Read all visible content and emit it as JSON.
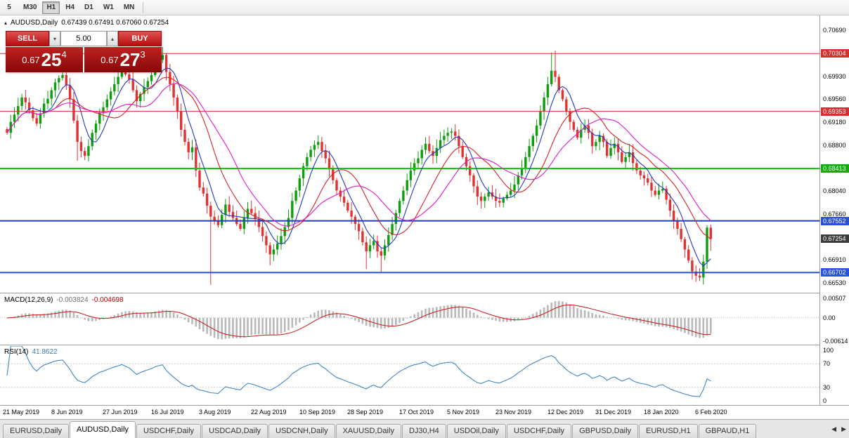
{
  "icons": {
    "collapse": "▴",
    "spin_up": "▴",
    "spin_down": "▾",
    "tab_scroll_left": "◀",
    "tab_scroll_right": "▶"
  },
  "toolbar": {
    "timeframes": [
      {
        "label": "5",
        "active": false
      },
      {
        "label": "M30",
        "active": false
      },
      {
        "label": "H1",
        "active": true
      },
      {
        "label": "H4",
        "active": false
      },
      {
        "label": "D1",
        "active": false
      },
      {
        "label": "W1",
        "active": false
      },
      {
        "label": "MN",
        "active": false
      }
    ]
  },
  "chart_header": {
    "symbol": "AUDUSD,Daily",
    "ohlc": "0.67439 0.67491 0.67060 0.67254"
  },
  "trade_panel": {
    "sell_label": "SELL",
    "buy_label": "BUY",
    "lot_size": "5.00",
    "sell_price": {
      "big": "0.67",
      "pips": "25",
      "point": "4"
    },
    "buy_price": {
      "big": "0.67",
      "pips": "27",
      "point": "3"
    }
  },
  "price_axis": {
    "ticks": [
      "0.70690",
      "0.69930",
      "0.69560",
      "0.69180",
      "0.68800",
      "0.68040",
      "0.67660",
      "0.66910",
      "0.66530"
    ],
    "line_labels": [
      {
        "text": "0.70304",
        "color": "#d53030"
      },
      {
        "text": "0.69353",
        "color": "#d53030"
      },
      {
        "text": "0.68413",
        "color": "#0ab00a"
      },
      {
        "text": "0.67552",
        "color": "#2a50d8"
      },
      {
        "text": "0.66702",
        "color": "#2a52e0"
      }
    ],
    "current_price": {
      "text": "0.67254",
      "color": "#3c3c3c"
    }
  },
  "chart_data": {
    "type": "candlestick",
    "symbol": "AUDUSD",
    "period": "Daily",
    "title": "AUDUSD,Daily",
    "y_range": [
      0.6637,
      0.7093
    ],
    "x_labels": [
      "21 May 2019",
      "8 Jun 2019",
      "27 Jun 2019",
      "16 Jul 2019",
      "3 Aug 2019",
      "22 Aug 2019",
      "10 Sep 2019",
      "28 Sep 2019",
      "17 Oct 2019",
      "5 Nov 2019",
      "23 Nov 2019",
      "12 Dec 2019",
      "31 Dec 2019",
      "18 Jan 2020",
      "6 Feb 2020"
    ],
    "x_label_indices": [
      0,
      13,
      27,
      40,
      53,
      67,
      80,
      93,
      107,
      120,
      133,
      147,
      160,
      173,
      187
    ],
    "closes": [
      0.69,
      0.6918,
      0.693,
      0.6944,
      0.6958,
      0.695,
      0.6937,
      0.6924,
      0.6915,
      0.6932,
      0.6948,
      0.6956,
      0.697,
      0.6983,
      0.699,
      0.6995,
      0.6978,
      0.6955,
      0.692,
      0.6885,
      0.687,
      0.6862,
      0.6878,
      0.69,
      0.6915,
      0.6933,
      0.6942,
      0.6955,
      0.6968,
      0.698,
      0.6992,
      0.7005,
      0.6996,
      0.6988,
      0.697,
      0.6952,
      0.6964,
      0.6975,
      0.6985,
      0.6995,
      0.701,
      0.702,
      0.7028,
      0.7,
      0.698,
      0.6958,
      0.6935,
      0.6905,
      0.6885,
      0.6868,
      0.6876,
      0.6838,
      0.681,
      0.68,
      0.678,
      0.6762,
      0.6755,
      0.6748,
      0.6765,
      0.6782,
      0.677,
      0.676,
      0.675,
      0.6742,
      0.676,
      0.6775,
      0.6768,
      0.6758,
      0.6745,
      0.673,
      0.6715,
      0.67,
      0.6708,
      0.6718,
      0.673,
      0.6745,
      0.676,
      0.6788,
      0.6805,
      0.6825,
      0.6845,
      0.686,
      0.6872,
      0.688,
      0.6885,
      0.687,
      0.6858,
      0.684,
      0.6822,
      0.6805,
      0.6795,
      0.6785,
      0.6772,
      0.6762,
      0.675,
      0.6738,
      0.672,
      0.6705,
      0.6715,
      0.6722,
      0.6705,
      0.6698,
      0.6715,
      0.6732,
      0.675,
      0.6768,
      0.6788,
      0.6805,
      0.6822,
      0.6838,
      0.685,
      0.6858,
      0.6872,
      0.6882,
      0.687,
      0.6862,
      0.6875,
      0.6888,
      0.6895,
      0.69,
      0.6902,
      0.6895,
      0.6878,
      0.686,
      0.6845,
      0.683,
      0.6812,
      0.6795,
      0.6788,
      0.6795,
      0.6802,
      0.6795,
      0.6788,
      0.6785,
      0.6792,
      0.6798,
      0.6805,
      0.6815,
      0.683,
      0.6842,
      0.686,
      0.6878,
      0.6895,
      0.6912,
      0.6935,
      0.6958,
      0.698,
      0.7002,
      0.6992,
      0.697,
      0.6955,
      0.6935,
      0.6918,
      0.6905,
      0.6892,
      0.6905,
      0.6912,
      0.69,
      0.6878,
      0.6885,
      0.6895,
      0.6885,
      0.6862,
      0.6875,
      0.6882,
      0.6868,
      0.6852,
      0.686,
      0.6868,
      0.685,
      0.6838,
      0.683,
      0.6825,
      0.6818,
      0.6805,
      0.6798,
      0.6805,
      0.6808,
      0.679,
      0.6772,
      0.6755,
      0.6742,
      0.6725,
      0.6708,
      0.669,
      0.6672,
      0.6665,
      0.6662,
      0.6688,
      0.6744,
      0.67254
    ],
    "special_candles": {
      "19": {
        "l": 0.6854
      },
      "55": {
        "l": 0.665
      },
      "71": {
        "l": 0.6682
      },
      "97": {
        "l": 0.6676
      },
      "101": {
        "l": 0.667
      },
      "147": {
        "h": 0.7032
      },
      "148": {
        "h": 0.7035
      },
      "186": {
        "l": 0.6655
      },
      "187": {
        "l": 0.6656
      },
      "190": {
        "o": 0.67439,
        "h": 0.67491,
        "l": 0.6706,
        "c": 0.67254
      }
    },
    "up_color": "#0f9d0f",
    "down_color": "#e03232",
    "moving_averages": [
      {
        "period": 6,
        "color": "#2038c8"
      },
      {
        "period": 14,
        "color": "#d82020"
      },
      {
        "period": 21,
        "color": "#e018d0"
      }
    ],
    "horizontal_lines": [
      {
        "price": 0.70304,
        "color": "#d53030",
        "width": 1
      },
      {
        "price": 0.69353,
        "color": "#d53030",
        "width": 1
      },
      {
        "price": 0.68413,
        "color": "#10c810",
        "width": 2
      },
      {
        "price": 0.67552,
        "color": "#1f3fbe",
        "width": 2
      },
      {
        "price": 0.66702,
        "color": "#2a52e0",
        "width": 2
      }
    ],
    "macd": {
      "fast": 12,
      "slow": 26,
      "signal": 9,
      "range": [
        -0.0068,
        0.006
      ],
      "histogram_color": "#b8b8b8",
      "signal_color": "#cc1111"
    },
    "rsi": {
      "period": 14,
      "range": [
        0,
        100
      ],
      "levels": [
        70,
        30
      ],
      "color": "#3f86c8"
    }
  },
  "macd_panel": {
    "label": "MACD(12,26,9)",
    "main_value": "-0.003824",
    "signal_value": "-0.004698",
    "axis_labels": [
      "0.00507",
      "0.00",
      "-0.00614"
    ]
  },
  "rsi_panel": {
    "label": "RSI(14)",
    "value": "41.8622",
    "axis_labels": [
      "100",
      "70",
      "30",
      "0"
    ]
  },
  "tabs": {
    "items": [
      "EURUSD,Daily",
      "AUDUSD,Daily",
      "USDCHF,Daily",
      "USDCAD,Daily",
      "USDCNH,Daily",
      "XAUUSD,Daily",
      "DJ30,H4",
      "USDOil,Daily",
      "USDCHF,Daily",
      "GBPUSD,Daily",
      "EURUSD,H1",
      "GBPAUD,H1"
    ],
    "active_index": 1
  }
}
